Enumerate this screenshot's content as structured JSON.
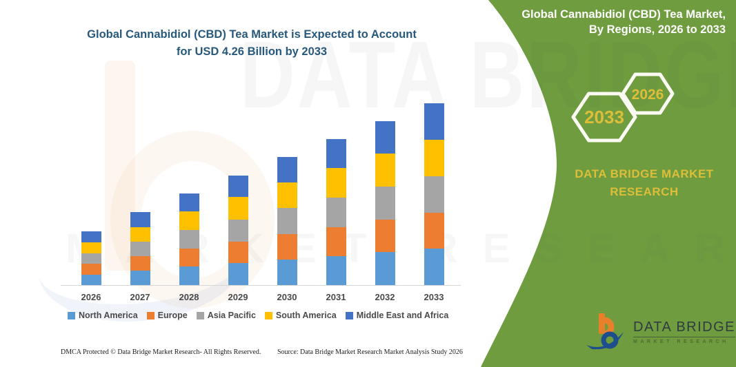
{
  "left_section": {
    "title_line1": "Global Cannabidiol (CBD) Tea Market is Expected to Account",
    "title_line2": "for USD 4.26 Billion by 2033",
    "title_color": "#27597C"
  },
  "chart_data": {
    "type": "bar",
    "stacked": true,
    "title": "Global Cannabidiol (CBD) Tea Market is Expected to Account for USD 4.26 Billion by 2033",
    "unit": "USD Billion",
    "categories": [
      "2026",
      "2027",
      "2028",
      "2029",
      "2030",
      "2031",
      "2032",
      "2033"
    ],
    "series": [
      {
        "name": "North America",
        "color": "#5B9BD5",
        "values": [
          0.25,
          0.34,
          0.43,
          0.51,
          0.6,
          0.68,
          0.77,
          0.85
        ]
      },
      {
        "name": "Europe",
        "color": "#ED7D31",
        "values": [
          0.25,
          0.34,
          0.43,
          0.51,
          0.6,
          0.68,
          0.77,
          0.85
        ]
      },
      {
        "name": "Asia Pacific",
        "color": "#A5A5A5",
        "values": [
          0.25,
          0.34,
          0.43,
          0.52,
          0.6,
          0.69,
          0.77,
          0.85
        ]
      },
      {
        "name": "South America",
        "color": "#FFC000",
        "values": [
          0.25,
          0.34,
          0.43,
          0.52,
          0.6,
          0.69,
          0.77,
          0.85
        ]
      },
      {
        "name": "Middle East and Africa",
        "color": "#4472C4",
        "values": [
          0.26,
          0.35,
          0.42,
          0.51,
          0.6,
          0.68,
          0.76,
          0.86
        ]
      }
    ],
    "totals": [
      1.26,
      1.71,
      2.14,
      2.57,
      3.0,
      3.42,
      3.84,
      4.26
    ],
    "ylim": [
      0,
      4.4
    ],
    "gridlines": false,
    "legend_position": "bottom",
    "x_axis_line_color": "#d6d6d6"
  },
  "right_panel": {
    "bg_color": "#6E9C3E",
    "title_line1": "Global Cannabidiol (CBD) Tea Market,",
    "title_line2": "By Regions, 2026 to 2033",
    "badges": [
      {
        "year": "2033"
      },
      {
        "year": "2026"
      }
    ],
    "brand_line1": "DATA BRIDGE MARKET",
    "brand_line2": "RESEARCH",
    "accent_color": "#DDBE3A"
  },
  "logo": {
    "name": "DATA BRIDGE",
    "subtext": "MARKET RESEARCH"
  },
  "watermark": {
    "line1": "DATA BRIDGE",
    "line2": "MARKET RESEARCH"
  },
  "footer": {
    "left": "DMCA Protected © Data Bridge Market Research-  All Rights Reserved.",
    "source": "Source: Data Bridge Market Research  Market Analysis Study 2026"
  }
}
